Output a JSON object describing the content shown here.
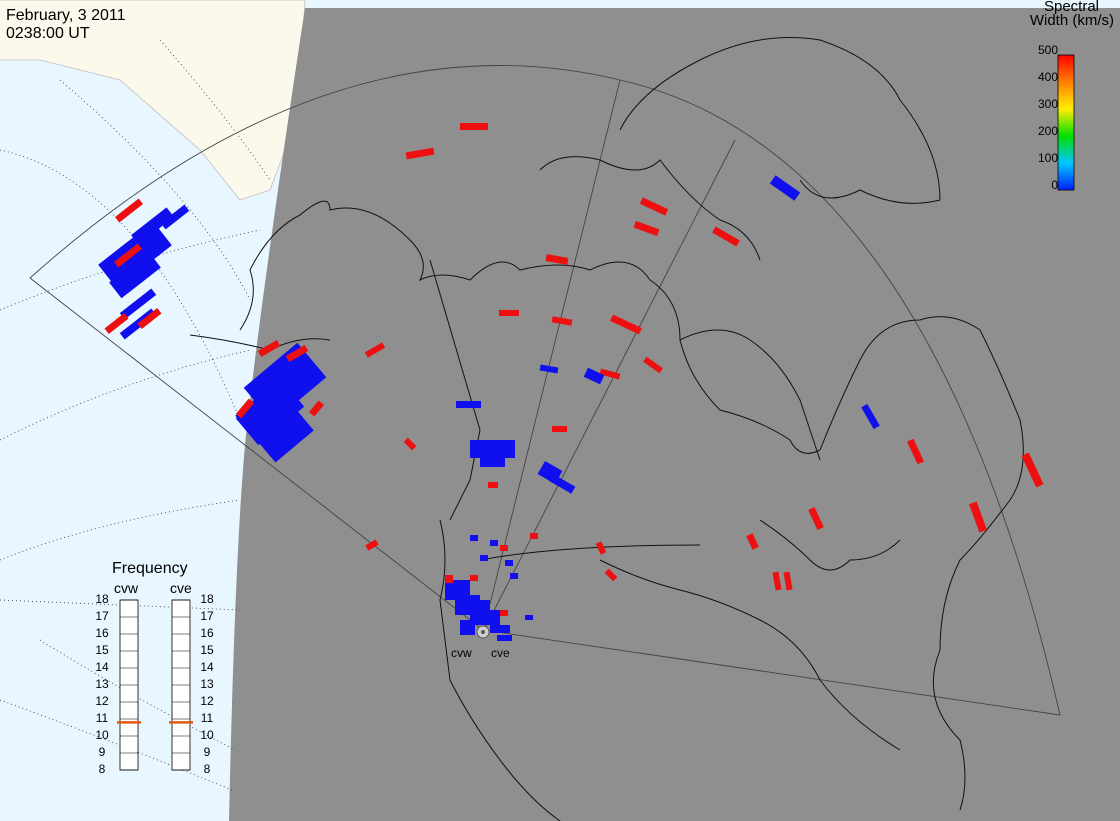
{
  "header": {
    "date": "February, 3 2011",
    "time": "0238:00 UT"
  },
  "colorbar": {
    "title_line1": "Spectral",
    "title_line2": "Width (km/s)",
    "ticks": [
      "500",
      "400",
      "300",
      "200",
      "100",
      "0"
    ]
  },
  "frequency_panel": {
    "title": "Frequency",
    "radars": [
      {
        "name": "cvw",
        "frequency_mhz": 10.8
      },
      {
        "name": "cve",
        "frequency_mhz": 10.8
      }
    ],
    "scale": [
      "18",
      "17",
      "16",
      "15",
      "14",
      "13",
      "12",
      "11",
      "10",
      "9",
      "8"
    ]
  },
  "stations": {
    "cvw": "cvw",
    "cve": "cve"
  },
  "colors": {
    "night": "#8f8f8f",
    "day_ocean": "#e8f6ff",
    "day_land": "#fbf8ec",
    "low_width": "#1010ee",
    "high_width": "#ee1010",
    "freq_marker": "#e05a10"
  }
}
